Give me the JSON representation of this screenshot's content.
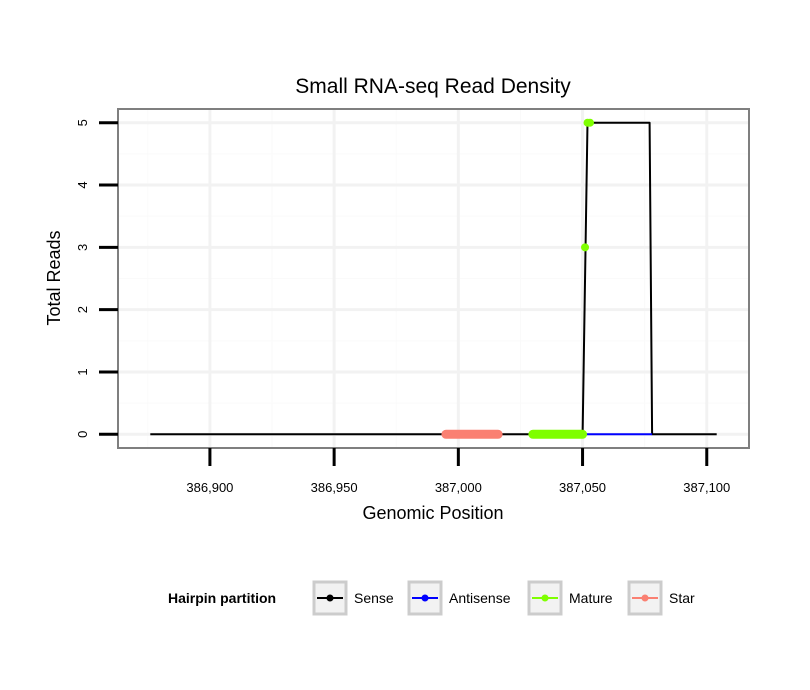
{
  "chart_data": {
    "type": "line",
    "title": "Small RNA-seq Read Density",
    "xlabel": "Genomic Position",
    "ylabel": "Total Reads",
    "xlim": [
      386863,
      387117
    ],
    "ylim": [
      -0.22,
      5.22
    ],
    "x_ticks": [
      386900,
      386950,
      387000,
      387050,
      387100
    ],
    "x_tick_labels": [
      "386,900",
      "386,950",
      "387,000",
      "387,050",
      "387,100"
    ],
    "y_ticks": [
      0,
      1,
      2,
      3,
      4,
      5
    ],
    "y_tick_labels": [
      "0",
      "1",
      "2",
      "3",
      "4",
      "5"
    ],
    "grid": true,
    "legend": {
      "title": "Hairpin partition",
      "placement": "bottom",
      "entries": [
        "Sense",
        "Antisense",
        "Mature",
        "Star"
      ]
    },
    "colors": {
      "Sense": "#000000",
      "Antisense": "#0000ff",
      "Mature": "#7fff00",
      "Star": "#fa8072"
    },
    "series": [
      {
        "name": "Sense",
        "points": [
          [
            386876,
            0
          ],
          [
            387050,
            0
          ],
          [
            387052,
            5
          ],
          [
            387077,
            5
          ],
          [
            387078,
            0
          ],
          [
            387104,
            0
          ]
        ]
      },
      {
        "name": "Antisense",
        "points": [
          [
            387050,
            0
          ],
          [
            387078,
            0
          ]
        ]
      },
      {
        "name": "Mature",
        "segments": [
          [
            [
              387030,
              0
            ],
            [
              387050,
              0
            ]
          ]
        ],
        "markers": [
          [
            387051,
            3
          ],
          [
            387052,
            5
          ],
          [
            387053,
            5
          ]
        ]
      },
      {
        "name": "Star",
        "segments": [
          [
            [
              386995,
              0
            ],
            [
              387016,
              0
            ]
          ]
        ],
        "markers": []
      }
    ]
  }
}
